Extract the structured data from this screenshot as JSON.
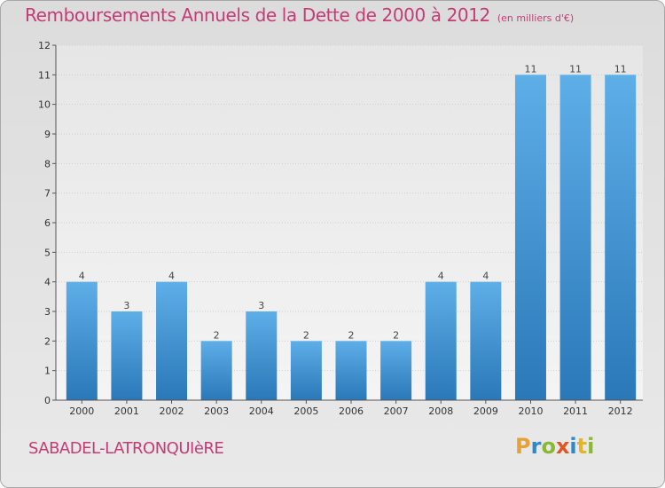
{
  "header": {
    "title": "Remboursements Annuels de la Dette de 2000 à 2012",
    "subtitle": "(en milliers d'€)"
  },
  "footer": {
    "commune": "SABADEL-LATRONQUIèRE",
    "logo": [
      "P",
      "r",
      "o",
      "x",
      "i",
      "t",
      "i"
    ]
  },
  "colors": {
    "title": "#c43b76",
    "bar_light": "#5eaee8",
    "bar_dark": "#2a78b8",
    "background": "#e0e0e0"
  },
  "chart_data": {
    "type": "bar",
    "title": "Remboursements Annuels de la Dette de 2000 à 2012",
    "categories": [
      "2000",
      "2001",
      "2002",
      "2003",
      "2004",
      "2005",
      "2006",
      "2007",
      "2008",
      "2009",
      "2010",
      "2011",
      "2012"
    ],
    "values": [
      4,
      3,
      4,
      2,
      3,
      2,
      2,
      2,
      4,
      4,
      11,
      11,
      11
    ],
    "ylim": [
      0,
      12
    ],
    "yticks": [
      0,
      1,
      2,
      3,
      4,
      5,
      6,
      7,
      8,
      9,
      10,
      11,
      12
    ],
    "grid": true
  }
}
